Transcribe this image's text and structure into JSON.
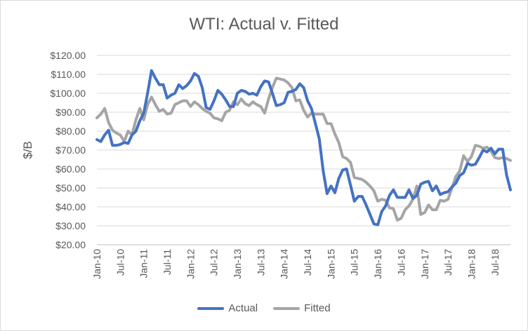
{
  "chart_data": {
    "type": "line",
    "title": "WTI: Actual v. Fitted",
    "xlabel": "",
    "ylabel": "$/B",
    "ylim": [
      20,
      120
    ],
    "yticks": [
      20,
      30,
      40,
      50,
      60,
      70,
      80,
      90,
      100,
      110,
      120
    ],
    "ytick_labels": [
      "$20.00",
      "$30.00",
      "$40.00",
      "$50.00",
      "$60.00",
      "$70.00",
      "$80.00",
      "$90.00",
      "$100.00",
      "$110.00",
      "$120.00"
    ],
    "xtick_labels": [
      "Jan-10",
      "Jul-10",
      "Jan-11",
      "Jul-11",
      "Jan-12",
      "Jul-12",
      "Jan-13",
      "Jul-13",
      "Jan-14",
      "Jul-14",
      "Jan-15",
      "Jul-15",
      "Jan-16",
      "Jul-16",
      "Jan-17",
      "Jul-17",
      "Jan-18",
      "Jul-18"
    ],
    "grid": true,
    "legend": "bottom",
    "series": [
      {
        "name": "Actual",
        "color": "#4472C4",
        "values": [
          75.5,
          74.5,
          78,
          80.5,
          72.5,
          72.5,
          73,
          74,
          73.5,
          78,
          80,
          85.5,
          89.5,
          100,
          112,
          108,
          104.5,
          104.5,
          97.5,
          99,
          100,
          104.5,
          102.5,
          104,
          106.5,
          110.5,
          109,
          103,
          92.5,
          91.5,
          96,
          101.5,
          99.5,
          96.5,
          93,
          93,
          100,
          101.5,
          101,
          99.5,
          100,
          99,
          103.5,
          106.5,
          106,
          100,
          93.5,
          94,
          95,
          100.5,
          101,
          102,
          105,
          103,
          96,
          92,
          84,
          76,
          59,
          47,
          51,
          47.5,
          55,
          59.5,
          60,
          51.5,
          43,
          45.5,
          45.5,
          41,
          36,
          31,
          30.5,
          37.5,
          40.5,
          46,
          49,
          45,
          45,
          45,
          49,
          44.5,
          46,
          52,
          53,
          53.5,
          48.5,
          51,
          46.5,
          47.5,
          48,
          50.5,
          52.5,
          56.5,
          58,
          63,
          62,
          62.5,
          66,
          70,
          69,
          71,
          68,
          70.5,
          70.5,
          57,
          49
        ]
      },
      {
        "name": "Fitted",
        "color": "#A5A5A5",
        "values": [
          87,
          89,
          92,
          84.5,
          80.5,
          79,
          78,
          74.5,
          80,
          78,
          86,
          92,
          86,
          94,
          98,
          94,
          90.5,
          91.5,
          89,
          89.5,
          94,
          95,
          96,
          96,
          93,
          95.5,
          94,
          92,
          90.5,
          89.5,
          87,
          86.5,
          85.5,
          90,
          91,
          95.5,
          94,
          97,
          94.5,
          93.5,
          95.5,
          94,
          93,
          89.5,
          97,
          103,
          108,
          107.5,
          107,
          105.5,
          103,
          96,
          96.5,
          91,
          87.5,
          89.5,
          89,
          89,
          89,
          84,
          84,
          78.5,
          74,
          66.5,
          65.5,
          63.5,
          55.5,
          55,
          54.5,
          53,
          51,
          48.5,
          43,
          44,
          43.5,
          39.5,
          39,
          33,
          34,
          38.5,
          40.5,
          44,
          51,
          36,
          37,
          41,
          38.5,
          38.5,
          43.5,
          43,
          44,
          50,
          56,
          59,
          67,
          64,
          66.5,
          72.5,
          72,
          71,
          71.5,
          69.5,
          66,
          65.5,
          66,
          65.5,
          64.5
        ]
      }
    ]
  }
}
